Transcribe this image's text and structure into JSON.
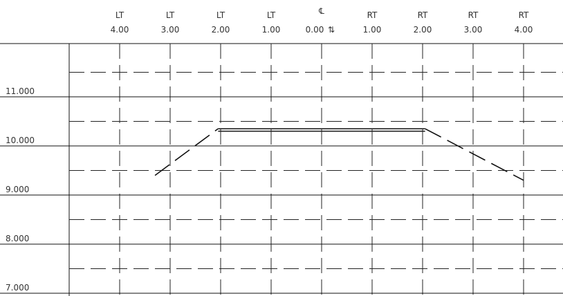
{
  "section": {
    "offset_columns": [
      {
        "side": "LT",
        "value": "4.00",
        "offset": -4
      },
      {
        "side": "LT",
        "value": "3.00",
        "offset": -3
      },
      {
        "side": "LT",
        "value": "2.00",
        "offset": -2
      },
      {
        "side": "LT",
        "value": "1.00",
        "offset": -1
      },
      {
        "side": "℄",
        "value": "0.00",
        "offset": 0
      },
      {
        "side": "RT",
        "value": "1.00",
        "offset": 1
      },
      {
        "side": "RT",
        "value": "2.00",
        "offset": 2
      },
      {
        "side": "RT",
        "value": "3.00",
        "offset": 3
      },
      {
        "side": "RT",
        "value": "4.00",
        "offset": 4
      }
    ],
    "elevation_rows": [
      {
        "label": "11.000",
        "elevation": 11
      },
      {
        "label": "10.000",
        "elevation": 10
      },
      {
        "label": "9.000",
        "elevation": 9
      },
      {
        "label": "8.000",
        "elevation": 8
      },
      {
        "label": "7.000",
        "elevation": 7
      }
    ],
    "centerline_mark": "⇅",
    "profile": {
      "left_slope": [
        [
          -3.3,
          9.4
        ],
        [
          -2.05,
          10.35
        ]
      ],
      "top": [
        [
          -2.05,
          10.35
        ],
        [
          2.05,
          10.35
        ]
      ],
      "right_slope": [
        [
          2.05,
          10.35
        ],
        [
          4.0,
          9.3
        ]
      ]
    }
  }
}
